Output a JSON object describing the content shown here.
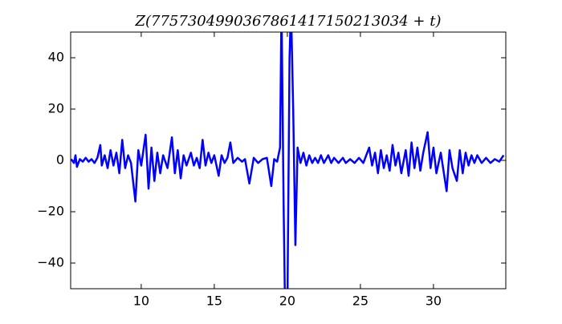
{
  "chart_data": {
    "type": "line",
    "title": "Z(7757304990367861417150213034 + t)",
    "color": "#0000ff",
    "x": [
      5.2,
      5.4,
      5.5,
      5.6,
      5.8,
      6.0,
      6.2,
      6.4,
      6.6,
      6.8,
      7.0,
      7.2,
      7.3,
      7.5,
      7.7,
      7.9,
      8.1,
      8.3,
      8.5,
      8.7,
      8.9,
      9.1,
      9.3,
      9.6,
      9.8,
      10.0,
      10.3,
      10.5,
      10.7,
      10.9,
      11.1,
      11.3,
      11.5,
      11.8,
      12.1,
      12.3,
      12.5,
      12.7,
      12.9,
      13.1,
      13.4,
      13.6,
      13.8,
      14.0,
      14.2,
      14.4,
      14.6,
      14.8,
      15.0,
      15.3,
      15.5,
      15.7,
      15.9,
      16.1,
      16.3,
      16.6,
      16.9,
      17.1,
      17.4,
      17.7,
      18.0,
      18.3,
      18.6,
      18.9,
      19.1,
      19.3,
      19.5,
      19.6,
      19.75,
      19.85,
      20.0,
      20.15,
      20.25,
      20.4,
      20.55,
      20.7,
      20.9,
      21.1,
      21.3,
      21.5,
      21.7,
      21.9,
      22.1,
      22.3,
      22.5,
      22.8,
      23.0,
      23.2,
      23.5,
      23.8,
      24.0,
      24.3,
      24.6,
      24.9,
      25.2,
      25.6,
      25.8,
      26.0,
      26.2,
      26.4,
      26.6,
      26.8,
      27.0,
      27.2,
      27.4,
      27.6,
      27.8,
      28.1,
      28.3,
      28.5,
      28.7,
      28.9,
      29.1,
      29.3,
      29.6,
      29.8,
      30.0,
      30.2,
      30.5,
      30.9,
      31.1,
      31.3,
      31.6,
      31.8,
      32.0,
      32.2,
      32.4,
      32.6,
      32.8,
      33.0,
      33.3,
      33.6,
      33.9,
      34.2,
      34.5,
      34.8
    ],
    "values": [
      0.5,
      -1,
      2,
      -2.5,
      0.5,
      -0.5,
      1,
      -0.5,
      0.5,
      -1,
      1,
      6,
      -2,
      2,
      -3,
      4,
      -2,
      3,
      -5,
      8,
      -3,
      2,
      -1,
      -16,
      4,
      -2,
      10,
      -11,
      5,
      -8,
      3,
      -5,
      2,
      -3,
      9,
      -5,
      4,
      -7,
      2,
      -2,
      3,
      -2,
      1,
      -3,
      8,
      -2,
      3,
      -1,
      2,
      -6,
      2,
      -1,
      1,
      7,
      -1,
      1,
      -0.5,
      0.5,
      -9,
      1,
      -1,
      0.5,
      1,
      -10,
      0.5,
      -0.5,
      5,
      60,
      -20,
      -60,
      -60,
      40,
      60,
      20,
      -33,
      5,
      -1,
      3,
      -2,
      2,
      -1,
      1,
      -1,
      2,
      -1,
      2,
      -1,
      1,
      -1,
      1,
      -1,
      0.5,
      -1,
      1,
      -1,
      5,
      -2,
      3,
      -5,
      4,
      -3,
      2,
      -4,
      6,
      -2,
      3,
      -5,
      4,
      -6,
      7,
      -3,
      5,
      -4,
      3,
      11,
      -3,
      5,
      -5,
      3,
      -12,
      4,
      -3,
      -8,
      4,
      -5,
      3,
      -2,
      2,
      -1,
      2,
      -1,
      1,
      -1,
      0.5,
      -0.5,
      2
    ],
    "xlim": [
      5.17,
      34.95
    ],
    "ylim": [
      -50,
      50
    ],
    "xticks": [
      10,
      15,
      20,
      25,
      30
    ],
    "yticks": [
      {
        "value": -40,
        "label": "−40"
      },
      {
        "value": -20,
        "label": "−20"
      },
      0,
      20,
      40
    ]
  }
}
